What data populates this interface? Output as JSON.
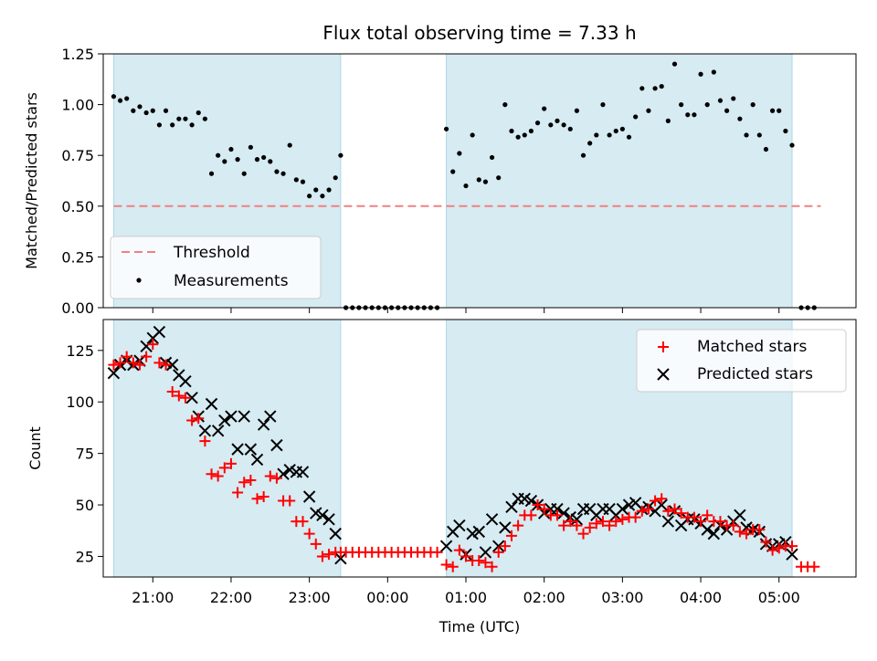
{
  "title": "Flux total observing time = 7.33 h",
  "colors": {
    "band": "#add8e6",
    "threshold": "#f08080",
    "matched": "#ff0000",
    "predicted": "#000000",
    "measurement": "#000000"
  },
  "chart_data": [
    {
      "type": "scatter",
      "title": "Flux total observing time = 7.33 h",
      "xlabel": "",
      "ylabel": "Matched/Predicted stars",
      "xlim": [
        "20:22",
        "05:59"
      ],
      "ylim": [
        0,
        1.25
      ],
      "yticks": [
        "0.00",
        "0.25",
        "0.50",
        "0.75",
        "1.00",
        "1.25"
      ],
      "shaded_intervals": [
        [
          "20:30",
          "23:24"
        ],
        [
          "00:45",
          "05:10"
        ]
      ],
      "threshold": 0.5,
      "threshold_range": [
        "20:30",
        "05:32"
      ],
      "legend": {
        "placement": "lower-left",
        "entries": [
          "Threshold",
          "Measurements"
        ]
      },
      "series": [
        {
          "name": "Measurements",
          "x": [
            "20:30",
            "20:35",
            "20:40",
            "20:45",
            "20:50",
            "20:55",
            "21:00",
            "21:05",
            "21:10",
            "21:15",
            "21:20",
            "21:25",
            "21:30",
            "21:35",
            "21:40",
            "21:45",
            "21:50",
            "21:55",
            "22:00",
            "22:05",
            "22:10",
            "22:15",
            "22:20",
            "22:25",
            "22:30",
            "22:35",
            "22:40",
            "22:45",
            "22:50",
            "22:55",
            "23:00",
            "23:05",
            "23:10",
            "23:15",
            "23:20",
            "23:24",
            "23:28",
            "23:33",
            "23:38",
            "23:43",
            "23:48",
            "23:53",
            "23:58",
            "00:03",
            "00:08",
            "00:13",
            "00:18",
            "00:23",
            "00:28",
            "00:33",
            "00:38",
            "00:45",
            "00:50",
            "00:55",
            "01:00",
            "01:05",
            "01:10",
            "01:15",
            "01:20",
            "01:25",
            "01:30",
            "01:35",
            "01:40",
            "01:45",
            "01:50",
            "01:55",
            "02:00",
            "02:05",
            "02:10",
            "02:15",
            "02:20",
            "02:25",
            "02:30",
            "02:35",
            "02:40",
            "02:45",
            "02:50",
            "02:55",
            "03:00",
            "03:05",
            "03:10",
            "03:15",
            "03:20",
            "03:25",
            "03:30",
            "03:35",
            "03:40",
            "03:45",
            "03:50",
            "03:55",
            "04:00",
            "04:05",
            "04:10",
            "04:15",
            "04:20",
            "04:25",
            "04:30",
            "04:35",
            "04:40",
            "04:45",
            "04:50",
            "04:55",
            "05:00",
            "05:05",
            "05:10",
            "05:17",
            "05:22",
            "05:27"
          ],
          "y": [
            1.04,
            1.02,
            1.03,
            0.97,
            0.99,
            0.96,
            0.97,
            0.9,
            0.97,
            0.9,
            0.93,
            0.93,
            0.9,
            0.96,
            0.93,
            0.66,
            0.75,
            0.72,
            0.78,
            0.73,
            0.66,
            0.79,
            0.73,
            0.74,
            0.72,
            0.67,
            0.66,
            0.8,
            0.63,
            0.62,
            0.55,
            0.58,
            0.55,
            0.58,
            0.64,
            0.75,
            0.0,
            0.0,
            0.0,
            0.0,
            0.0,
            0.0,
            0.0,
            0.0,
            0.0,
            0.0,
            0.0,
            0.0,
            0.0,
            0.0,
            0.0,
            0.88,
            0.67,
            0.76,
            0.6,
            0.85,
            0.63,
            0.62,
            0.74,
            0.64,
            1.0,
            0.87,
            0.84,
            0.85,
            0.87,
            0.91,
            0.98,
            0.9,
            0.92,
            0.9,
            0.88,
            0.97,
            0.75,
            0.81,
            0.85,
            1.0,
            0.85,
            0.87,
            0.88,
            0.84,
            0.94,
            1.08,
            0.97,
            1.08,
            1.09,
            0.92,
            1.2,
            1.0,
            0.95,
            0.95,
            1.15,
            1.0,
            1.16,
            1.02,
            0.97,
            1.03,
            0.93,
            0.85,
            1.0,
            0.85,
            0.78,
            0.97,
            0.97,
            0.87,
            0.8,
            0.0,
            0.0,
            0.0
          ]
        }
      ]
    },
    {
      "type": "scatter",
      "title": "",
      "xlabel": "Time (UTC)",
      "ylabel": "Count",
      "xlim": [
        "20:22",
        "05:59"
      ],
      "ylim": [
        15,
        140
      ],
      "yticks": [
        "25",
        "50",
        "75",
        "100",
        "125"
      ],
      "xticks": [
        "21:00",
        "22:00",
        "23:00",
        "00:00",
        "01:00",
        "02:00",
        "03:00",
        "04:00",
        "05:00"
      ],
      "shaded_intervals": [
        [
          "20:30",
          "23:24"
        ],
        [
          "00:45",
          "05:10"
        ]
      ],
      "legend": {
        "placement": "upper-right",
        "entries": [
          "Matched stars",
          "Predicted stars"
        ]
      },
      "series": [
        {
          "name": "Matched stars",
          "x": [
            "20:30",
            "20:35",
            "20:40",
            "20:45",
            "20:50",
            "20:55",
            "21:00",
            "21:05",
            "21:10",
            "21:15",
            "21:20",
            "21:25",
            "21:30",
            "21:35",
            "21:40",
            "21:45",
            "21:50",
            "21:55",
            "22:00",
            "22:05",
            "22:10",
            "22:15",
            "22:20",
            "22:25",
            "22:30",
            "22:35",
            "22:40",
            "22:45",
            "22:50",
            "22:55",
            "23:00",
            "23:05",
            "23:10",
            "23:15",
            "23:20",
            "23:24",
            "23:28",
            "23:33",
            "23:38",
            "23:43",
            "23:48",
            "23:53",
            "23:58",
            "00:03",
            "00:08",
            "00:13",
            "00:18",
            "00:23",
            "00:28",
            "00:33",
            "00:38",
            "00:45",
            "00:50",
            "00:55",
            "01:00",
            "01:05",
            "01:10",
            "01:15",
            "01:20",
            "01:25",
            "01:30",
            "01:35",
            "01:40",
            "01:45",
            "01:50",
            "01:55",
            "02:00",
            "02:05",
            "02:10",
            "02:15",
            "02:20",
            "02:25",
            "02:30",
            "02:35",
            "02:40",
            "02:45",
            "02:50",
            "02:55",
            "03:00",
            "03:05",
            "03:10",
            "03:15",
            "03:20",
            "03:25",
            "03:30",
            "03:35",
            "03:40",
            "03:45",
            "03:50",
            "03:55",
            "04:00",
            "04:05",
            "04:10",
            "04:15",
            "04:20",
            "04:25",
            "04:30",
            "04:35",
            "04:40",
            "04:45",
            "04:50",
            "04:55",
            "05:00",
            "05:05",
            "05:10",
            "05:17",
            "05:22",
            "05:27"
          ],
          "y": [
            118,
            119,
            122,
            119,
            118,
            122,
            128,
            119,
            118,
            105,
            103,
            102,
            91,
            92,
            81,
            65,
            64,
            68,
            70,
            56,
            61,
            62,
            53,
            54,
            64,
            63,
            52,
            52,
            42,
            42,
            36,
            31,
            25,
            26,
            27,
            27,
            27,
            27,
            27,
            27,
            27,
            27,
            27,
            27,
            27,
            27,
            27,
            27,
            27,
            27,
            27,
            21,
            20,
            28,
            25,
            23,
            23,
            22,
            20,
            27,
            30,
            35,
            40,
            45,
            45,
            50,
            48,
            45,
            45,
            40,
            42,
            40,
            36,
            39,
            41,
            42,
            40,
            42,
            43,
            44,
            44,
            47,
            48,
            52,
            53,
            47,
            48,
            46,
            44,
            44,
            42,
            45,
            42,
            42,
            40,
            40,
            37,
            36,
            38,
            38,
            32,
            28,
            29,
            30,
            30,
            20,
            20,
            20
          ]
        },
        {
          "name": "Predicted stars",
          "x": [
            "20:30",
            "20:35",
            "20:40",
            "20:45",
            "20:50",
            "20:55",
            "21:00",
            "21:05",
            "21:10",
            "21:15",
            "21:20",
            "21:25",
            "21:30",
            "21:35",
            "21:40",
            "21:45",
            "21:50",
            "21:55",
            "22:00",
            "22:05",
            "22:10",
            "22:15",
            "22:20",
            "22:25",
            "22:30",
            "22:35",
            "22:40",
            "22:45",
            "22:50",
            "22:55",
            "23:00",
            "23:05",
            "23:10",
            "23:15",
            "23:20",
            "23:24",
            "00:45",
            "00:50",
            "00:55",
            "01:00",
            "01:05",
            "01:10",
            "01:15",
            "01:20",
            "01:25",
            "01:30",
            "01:35",
            "01:40",
            "01:45",
            "01:50",
            "01:55",
            "02:00",
            "02:05",
            "02:10",
            "02:15",
            "02:20",
            "02:25",
            "02:30",
            "02:35",
            "02:40",
            "02:45",
            "02:50",
            "02:55",
            "03:00",
            "03:05",
            "03:10",
            "03:15",
            "03:20",
            "03:25",
            "03:30",
            "03:35",
            "03:40",
            "03:45",
            "03:50",
            "03:55",
            "04:00",
            "04:05",
            "04:10",
            "04:15",
            "04:20",
            "04:25",
            "04:30",
            "04:35",
            "04:40",
            "04:45",
            "04:50",
            "04:55",
            "05:00",
            "05:05",
            "05:10"
          ],
          "y": [
            114,
            118,
            120,
            118,
            120,
            127,
            131,
            134,
            119,
            118,
            113,
            110,
            102,
            93,
            86,
            99,
            86,
            91,
            93,
            77,
            93,
            77,
            72,
            89,
            93,
            79,
            65,
            67,
            66,
            66,
            54,
            46,
            45,
            43,
            36,
            24,
            30,
            37,
            40,
            26,
            36,
            37,
            27,
            43,
            30,
            39,
            49,
            53,
            53,
            52,
            50,
            46,
            48,
            48,
            46,
            44,
            43,
            48,
            48,
            45,
            48,
            48,
            45,
            48,
            50,
            51,
            48,
            49,
            47,
            50,
            42,
            47,
            40,
            43,
            43,
            41,
            38,
            36,
            40,
            38,
            42,
            45,
            39,
            38,
            37,
            31,
            30,
            31,
            32,
            26
          ]
        }
      ]
    }
  ]
}
